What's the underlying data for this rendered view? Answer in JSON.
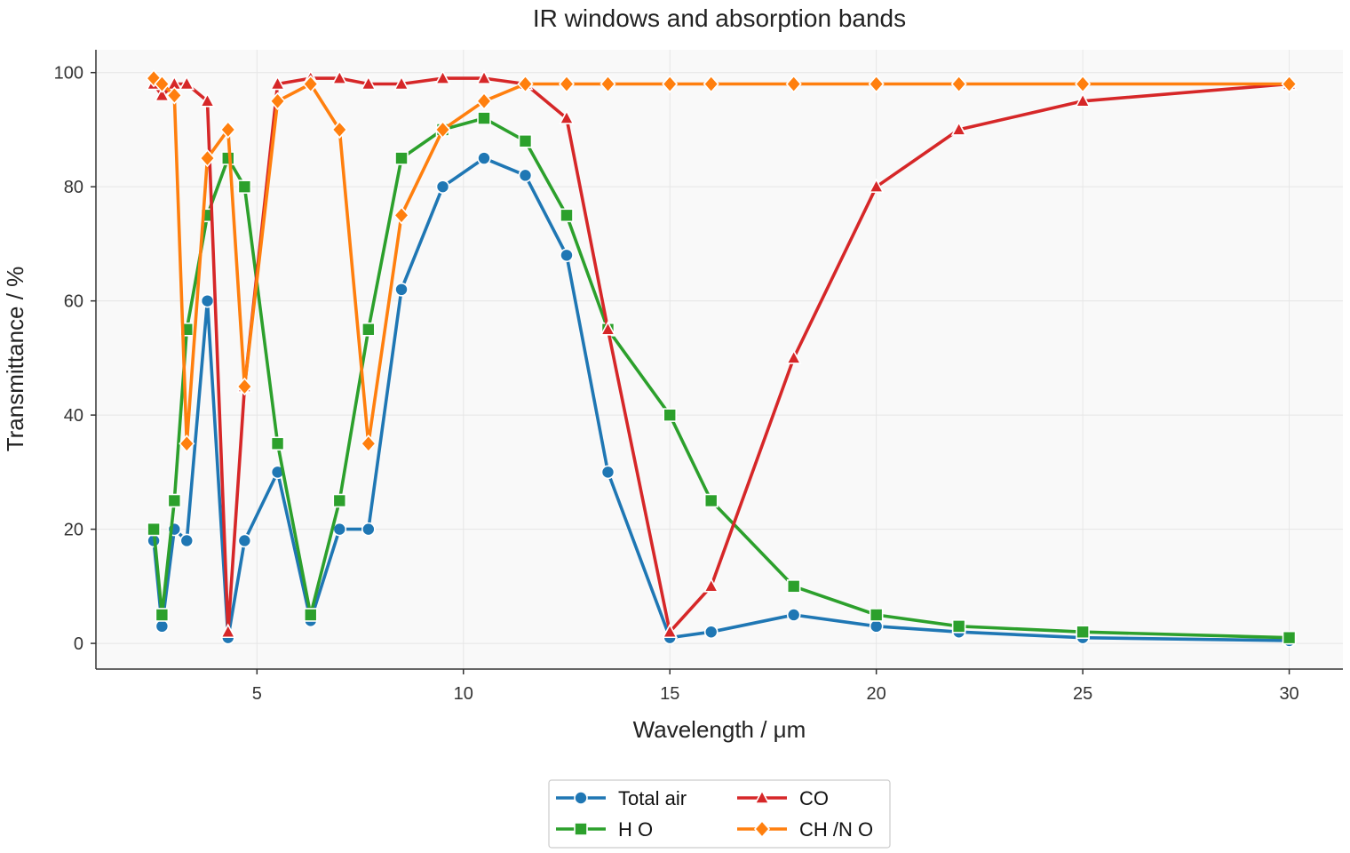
{
  "chart_data": {
    "type": "line",
    "title": "IR windows and absorption bands",
    "xlabel": "Wavelength / μm",
    "ylabel": "Transmittance / %",
    "xlim": [
      1.1,
      31.3
    ],
    "ylim": [
      -4.5,
      104
    ],
    "xticks": [
      5,
      10,
      15,
      20,
      25,
      30
    ],
    "yticks": [
      0,
      20,
      40,
      60,
      80,
      100
    ],
    "grid": true,
    "legend_position": "bottom-center",
    "series": [
      {
        "name": "Total air",
        "color": "#1f77b4",
        "marker": "circle",
        "x": [
          2.5,
          2.7,
          3.0,
          3.3,
          3.8,
          4.3,
          4.7,
          5.5,
          6.3,
          7.0,
          7.7,
          8.5,
          9.5,
          10.5,
          11.5,
          12.5,
          13.5,
          15.0,
          16.0,
          18.0,
          20.0,
          22.0,
          25.0,
          30.0
        ],
        "y": [
          18,
          3,
          20,
          18,
          60,
          1,
          18,
          30,
          4,
          20,
          20,
          62,
          80,
          85,
          82,
          68,
          30,
          1,
          2,
          5,
          3,
          2,
          1,
          0.5
        ]
      },
      {
        "name": "H O",
        "color": "#2ca02c",
        "marker": "square",
        "x": [
          2.5,
          2.7,
          3.0,
          3.3,
          3.8,
          4.3,
          4.7,
          5.5,
          6.3,
          7.0,
          7.7,
          8.5,
          9.5,
          10.5,
          11.5,
          12.5,
          13.5,
          15.0,
          16.0,
          18.0,
          20.0,
          22.0,
          25.0,
          30.0
        ],
        "y": [
          20,
          5,
          25,
          55,
          75,
          85,
          80,
          35,
          5,
          25,
          55,
          85,
          90,
          92,
          88,
          75,
          55,
          40,
          25,
          10,
          5,
          3,
          2,
          1
        ]
      },
      {
        "name": "CO",
        "color": "#d62728",
        "marker": "triangle",
        "x": [
          2.5,
          2.7,
          3.0,
          3.3,
          3.8,
          4.3,
          4.7,
          5.5,
          6.3,
          7.0,
          7.7,
          8.5,
          9.5,
          10.5,
          11.5,
          12.5,
          13.5,
          15.0,
          16.0,
          18.0,
          20.0,
          22.0,
          25.0,
          30.0
        ],
        "y": [
          98,
          96,
          98,
          98,
          95,
          2,
          45,
          98,
          99,
          99,
          98,
          98,
          99,
          99,
          98,
          92,
          55,
          2,
          10,
          50,
          80,
          90,
          95,
          98
        ]
      },
      {
        "name": "CH /N O",
        "color": "#ff7f0e",
        "marker": "diamond",
        "x": [
          2.5,
          2.7,
          3.0,
          3.3,
          3.8,
          4.3,
          4.7,
          5.5,
          6.3,
          7.0,
          7.7,
          8.5,
          9.5,
          10.5,
          11.5,
          12.5,
          13.5,
          15.0,
          16.0,
          18.0,
          20.0,
          22.0,
          25.0,
          30.0
        ],
        "y": [
          99,
          98,
          96,
          35,
          85,
          90,
          45,
          95,
          98,
          90,
          35,
          75,
          90,
          95,
          98,
          98,
          98,
          98,
          98,
          98,
          98,
          98,
          98,
          98
        ]
      }
    ]
  }
}
